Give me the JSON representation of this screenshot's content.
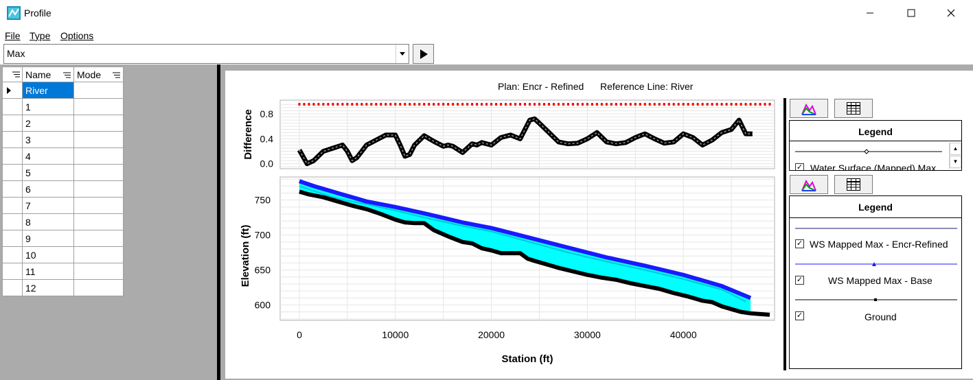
{
  "window": {
    "title": "Profile"
  },
  "menu": {
    "file": "File",
    "type": "Type",
    "options": "Options"
  },
  "profile_select": {
    "value": "Max"
  },
  "grid": {
    "headers": {
      "name": "Name",
      "mode": "Mode"
    },
    "rows": [
      "River",
      "1",
      "2",
      "3",
      "4",
      "5",
      "6",
      "7",
      "8",
      "9",
      "10",
      "11",
      "12"
    ]
  },
  "chart": {
    "plan_label": "Plan: Encr - Refined",
    "reference_label": "Reference Line: River"
  },
  "legend_top": {
    "title": "Legend",
    "items": [
      {
        "label": "Water Surface (Mapped) Max",
        "checked": true
      }
    ]
  },
  "legend_bottom": {
    "title": "Legend",
    "items": [
      {
        "label": "WS Mapped Max - Encr-Refined",
        "checked": true
      },
      {
        "label": "WS Mapped Max - Base",
        "checked": true
      },
      {
        "label": "Ground",
        "checked": true
      }
    ]
  },
  "colors": {
    "ws_refined": "#00ffff",
    "ws_base": "#1a1aff",
    "ground": "#000000",
    "difference_markers": "#ff0000",
    "selection": "#0078d7"
  },
  "chart_data": [
    {
      "type": "line",
      "title": "",
      "xlabel": "",
      "ylabel": "Difference",
      "xlim": [
        -2000,
        49500
      ],
      "ylim": [
        -0.08,
        1.02
      ],
      "yticks": [
        "0.0",
        "0.4",
        "0.8"
      ],
      "series": [
        {
          "x": [
            0,
            800,
            1500,
            2500,
            3500,
            4500,
            5000,
            5500,
            6000,
            7000,
            8000,
            9000,
            10000,
            10500,
            11000,
            11500,
            12000,
            13000,
            14000,
            15000,
            15500,
            16000,
            17000,
            18000,
            18500,
            19000,
            20000,
            21000,
            22000,
            23000,
            24000,
            24500,
            25000,
            26000,
            27000,
            28000,
            29000,
            30000,
            31000,
            32000,
            33000,
            34000,
            35000,
            36000,
            37000,
            38000,
            39000,
            40000,
            41000,
            42000,
            43000,
            44000,
            45000,
            45800,
            46500,
            47200
          ],
          "y": [
            0.22,
            0.0,
            0.05,
            0.2,
            0.25,
            0.3,
            0.2,
            0.05,
            0.1,
            0.3,
            0.38,
            0.46,
            0.46,
            0.3,
            0.12,
            0.15,
            0.3,
            0.45,
            0.36,
            0.28,
            0.3,
            0.28,
            0.18,
            0.32,
            0.3,
            0.34,
            0.3,
            0.42,
            0.46,
            0.4,
            0.7,
            0.72,
            0.65,
            0.5,
            0.35,
            0.32,
            0.33,
            0.4,
            0.5,
            0.35,
            0.32,
            0.34,
            0.42,
            0.48,
            0.4,
            0.33,
            0.35,
            0.48,
            0.42,
            0.3,
            0.38,
            0.5,
            0.55,
            0.7,
            0.48,
            0.48
          ]
        }
      ]
    },
    {
      "type": "line",
      "title": "",
      "xlabel": "Station (ft)",
      "ylabel": "Elevation (ft)",
      "xlim": [
        -2000,
        49500
      ],
      "ylim": [
        578,
        783
      ],
      "xticks": [
        "0",
        "10000",
        "20000",
        "30000",
        "40000"
      ],
      "yticks": [
        "600",
        "650",
        "700",
        "750"
      ],
      "series": [
        {
          "name": "WS Mapped Max - Encr-Refined",
          "x": [
            0,
            1500,
            4000,
            7000,
            10000,
            13000,
            17000,
            20000,
            24000,
            28000,
            32000,
            36000,
            40000,
            44000,
            46500
          ],
          "y": [
            770,
            763,
            752,
            744,
            735,
            725,
            713,
            705,
            690,
            675,
            662,
            650,
            637,
            622,
            605
          ]
        },
        {
          "name": "WS Mapped Max - Base",
          "x": [
            0,
            1500,
            4000,
            7000,
            10000,
            13000,
            17000,
            20000,
            24000,
            28000,
            32000,
            36000,
            40000,
            44000,
            47000
          ],
          "y": [
            777,
            770,
            760,
            748,
            740,
            731,
            718,
            710,
            696,
            682,
            668,
            656,
            643,
            627,
            610
          ]
        },
        {
          "name": "Ground",
          "x": [
            0,
            1000,
            2500,
            4000,
            5500,
            7000,
            8500,
            10000,
            11000,
            12000,
            13000,
            14000,
            15500,
            17000,
            18000,
            19000,
            20000,
            21000,
            22000,
            23000,
            23800,
            24500,
            25500,
            27000,
            28500,
            30000,
            31500,
            33000,
            34500,
            36000,
            37500,
            39000,
            40500,
            42000,
            43000,
            44000,
            45000,
            46000,
            47000,
            48000,
            49000
          ],
          "y": [
            762,
            758,
            754,
            748,
            742,
            737,
            730,
            722,
            718,
            717,
            717,
            707,
            698,
            690,
            688,
            681,
            678,
            674,
            674,
            674,
            666,
            663,
            659,
            653,
            648,
            643,
            639,
            636,
            631,
            627,
            623,
            617,
            612,
            606,
            604,
            598,
            594,
            590,
            588,
            587,
            586
          ]
        }
      ]
    }
  ]
}
